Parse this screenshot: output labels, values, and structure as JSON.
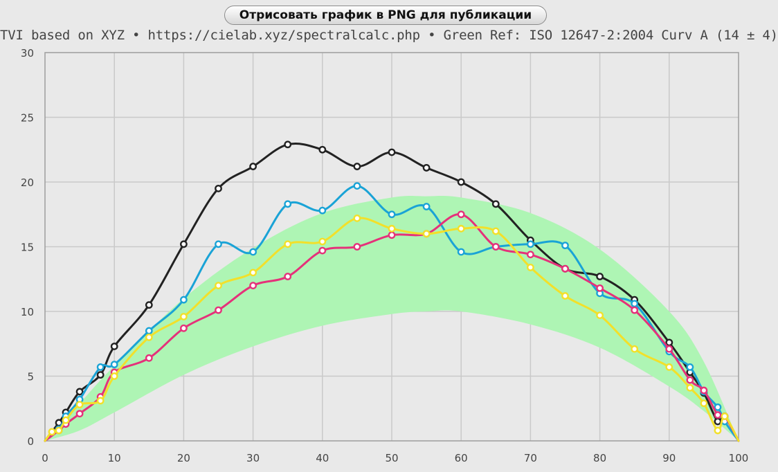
{
  "header": {
    "button_label": "Отрисовать график в PNG для публикации",
    "subtitle": "TVI based on XYZ  •  https://cielab.xyz/spectralcalc.php  •  Green Ref: ISO 12647-2:2004 Curv A (14 ± 4)"
  },
  "chart_data": {
    "type": "line",
    "title": "",
    "xlabel": "",
    "ylabel": "",
    "xlim": [
      0,
      100
    ],
    "ylim": [
      0,
      30
    ],
    "grid": true,
    "x_ticks": [
      0,
      10,
      20,
      30,
      40,
      50,
      60,
      70,
      80,
      90,
      100
    ],
    "y_ticks": [
      0,
      5,
      10,
      15,
      20,
      25,
      30
    ],
    "x_tick_labels": [
      "0",
      "10",
      "20",
      "30",
      "40",
      "50",
      "60",
      "70",
      "80",
      "90",
      "100"
    ],
    "y_tick_labels": [
      "0",
      "5",
      "10",
      "15",
      "20",
      "25",
      "30"
    ],
    "reference_band": {
      "color": "#aef5b4",
      "x": [
        0,
        5,
        10,
        20,
        30,
        40,
        50,
        55,
        60,
        70,
        80,
        90,
        95,
        100
      ],
      "upper": [
        0,
        2.9,
        5.8,
        11.0,
        14.9,
        17.6,
        18.8,
        18.9,
        18.8,
        17.6,
        14.8,
        10.0,
        6.1,
        0
      ],
      "lower": [
        0,
        0.8,
        2.2,
        5.1,
        7.3,
        8.9,
        9.8,
        10.0,
        10.0,
        9.0,
        7.2,
        4.2,
        2.3,
        0
      ]
    },
    "series": [
      {
        "color": "#222222",
        "x": [
          0,
          2,
          3,
          5,
          8,
          10,
          15,
          20,
          25,
          30,
          35,
          40,
          45,
          50,
          55,
          60,
          65,
          70,
          75,
          80,
          85,
          90,
          93,
          95,
          97,
          98,
          100
        ],
        "y": [
          0,
          1.4,
          2.2,
          3.8,
          5.1,
          7.3,
          10.5,
          15.2,
          19.5,
          21.2,
          22.9,
          22.5,
          21.2,
          22.3,
          21.1,
          20.0,
          18.3,
          15.5,
          13.3,
          12.7,
          10.9,
          7.6,
          5.3,
          3.7,
          1.5,
          1.9,
          0
        ]
      },
      {
        "color": "#1aa3d6",
        "x": [
          0,
          2,
          3,
          5,
          8,
          10,
          15,
          20,
          25,
          30,
          35,
          40,
          45,
          50,
          55,
          60,
          65,
          70,
          75,
          80,
          85,
          90,
          93,
          95,
          97,
          98,
          100
        ],
        "y": [
          0,
          0.9,
          1.9,
          3.2,
          5.7,
          5.9,
          8.5,
          10.9,
          15.2,
          14.6,
          18.3,
          17.8,
          19.7,
          17.5,
          18.1,
          14.6,
          15.0,
          15.2,
          15.1,
          11.4,
          10.6,
          6.9,
          5.7,
          3.8,
          2.6,
          1.5,
          0
        ]
      },
      {
        "color": "#e5317a",
        "x": [
          0,
          2,
          3,
          5,
          8,
          10,
          15,
          20,
          25,
          30,
          35,
          40,
          45,
          50,
          55,
          60,
          65,
          70,
          75,
          80,
          85,
          90,
          93,
          95,
          97,
          98,
          100
        ],
        "y": [
          0,
          0.8,
          1.3,
          2.1,
          3.4,
          5.3,
          6.4,
          8.7,
          10.1,
          12.0,
          12.7,
          14.7,
          15.0,
          15.9,
          16.0,
          17.5,
          15.0,
          14.4,
          13.3,
          11.8,
          10.1,
          7.1,
          4.7,
          3.9,
          2.0,
          1.9,
          0
        ]
      },
      {
        "color": "#f2e02a",
        "x": [
          0,
          1,
          2,
          3,
          5,
          8,
          10,
          15,
          20,
          25,
          30,
          35,
          40,
          45,
          50,
          55,
          60,
          65,
          70,
          75,
          80,
          85,
          90,
          93,
          95,
          97,
          98,
          100
        ],
        "y": [
          0,
          0.7,
          0.8,
          1.6,
          2.8,
          3.1,
          5.0,
          8.0,
          9.6,
          12.0,
          13.0,
          15.2,
          15.4,
          17.2,
          16.4,
          16.0,
          16.4,
          16.2,
          13.4,
          11.2,
          9.7,
          7.1,
          5.7,
          4.1,
          2.9,
          0.8,
          1.9,
          0
        ]
      }
    ]
  }
}
